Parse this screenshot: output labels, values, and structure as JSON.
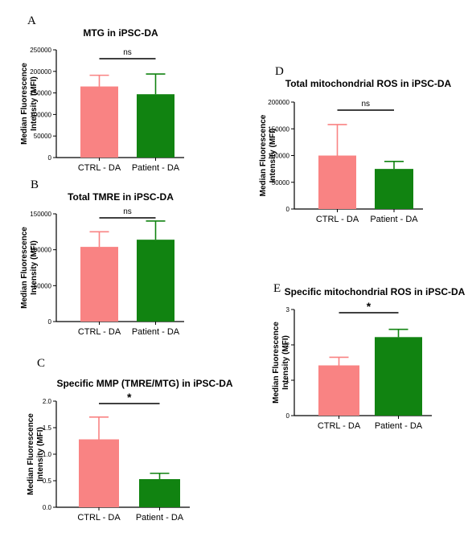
{
  "colors": {
    "ctrl": "#f98383",
    "patient": "#118311",
    "axis": "#000000"
  },
  "chart_data": [
    {
      "panel": "A",
      "type": "bar",
      "title": "MTG in iPSC-DA",
      "ylabel": "Median Fluorescence Intensity (MFI)",
      "categories": [
        "CTRL - DA",
        "Patient - DA"
      ],
      "values": [
        165000,
        147000
      ],
      "errors": [
        26000,
        47000
      ],
      "ylim": [
        0,
        250000
      ],
      "yticks": [
        0,
        50000,
        100000,
        150000,
        200000,
        250000
      ],
      "ytick_labels": [
        "0",
        "50000",
        "100000",
        "150000",
        "200000",
        "250000"
      ],
      "significance": "ns",
      "grid": false
    },
    {
      "panel": "B",
      "type": "bar",
      "title": "Total TMRE in iPSC-DA",
      "ylabel": "Median Fluorescence Intensity (MFI)",
      "categories": [
        "CTRL - DA",
        "Patient - DA"
      ],
      "values": [
        104000,
        114000
      ],
      "errors": [
        21000,
        26000
      ],
      "ylim": [
        0,
        150000
      ],
      "yticks": [
        0,
        50000,
        100000,
        150000
      ],
      "ytick_labels": [
        "0",
        "50000",
        "100000",
        "150000"
      ],
      "significance": "ns",
      "grid": false
    },
    {
      "panel": "C",
      "type": "bar",
      "title": "Specific MMP (TMRE/MTG) in iPSC-DA",
      "ylabel": "Median Fluorescence Intensity (MFI)",
      "categories": [
        "CTRL - DA",
        "Patient - DA"
      ],
      "values": [
        1.28,
        0.53
      ],
      "errors": [
        0.42,
        0.11
      ],
      "ylim": [
        0,
        2.0
      ],
      "yticks": [
        0,
        0.5,
        1.0,
        1.5,
        2.0
      ],
      "ytick_labels": [
        "0.0",
        "0.5",
        "1.0",
        "1.5",
        "2.0"
      ],
      "significance": "*",
      "grid": false
    },
    {
      "panel": "D",
      "type": "bar",
      "title": "Total mitochondrial ROS in iPSC-DA",
      "ylabel": "Median Fluorescence Intensity (MFI)",
      "categories": [
        "CTRL - DA",
        "Patient - DA"
      ],
      "values": [
        100000,
        75000
      ],
      "errors": [
        58000,
        14000
      ],
      "ylim": [
        0,
        200000
      ],
      "yticks": [
        0,
        50000,
        100000,
        150000,
        200000
      ],
      "ytick_labels": [
        "0",
        "50000",
        "100000",
        "150000",
        "200000"
      ],
      "significance": "ns",
      "grid": false
    },
    {
      "panel": "E",
      "type": "bar",
      "title": "Specific mitochondrial ROS in iPSC-DA",
      "ylabel": "Median Fluorescence Intensity (MFI)",
      "categories": [
        "CTRL - DA",
        "Patient - DA"
      ],
      "values": [
        1.42,
        2.22
      ],
      "errors": [
        0.23,
        0.22
      ],
      "ylim": [
        0,
        3
      ],
      "yticks": [
        0,
        1,
        2,
        3
      ],
      "ytick_labels": [
        "0",
        "1",
        "2",
        "3"
      ],
      "significance": "*",
      "grid": false
    }
  ]
}
